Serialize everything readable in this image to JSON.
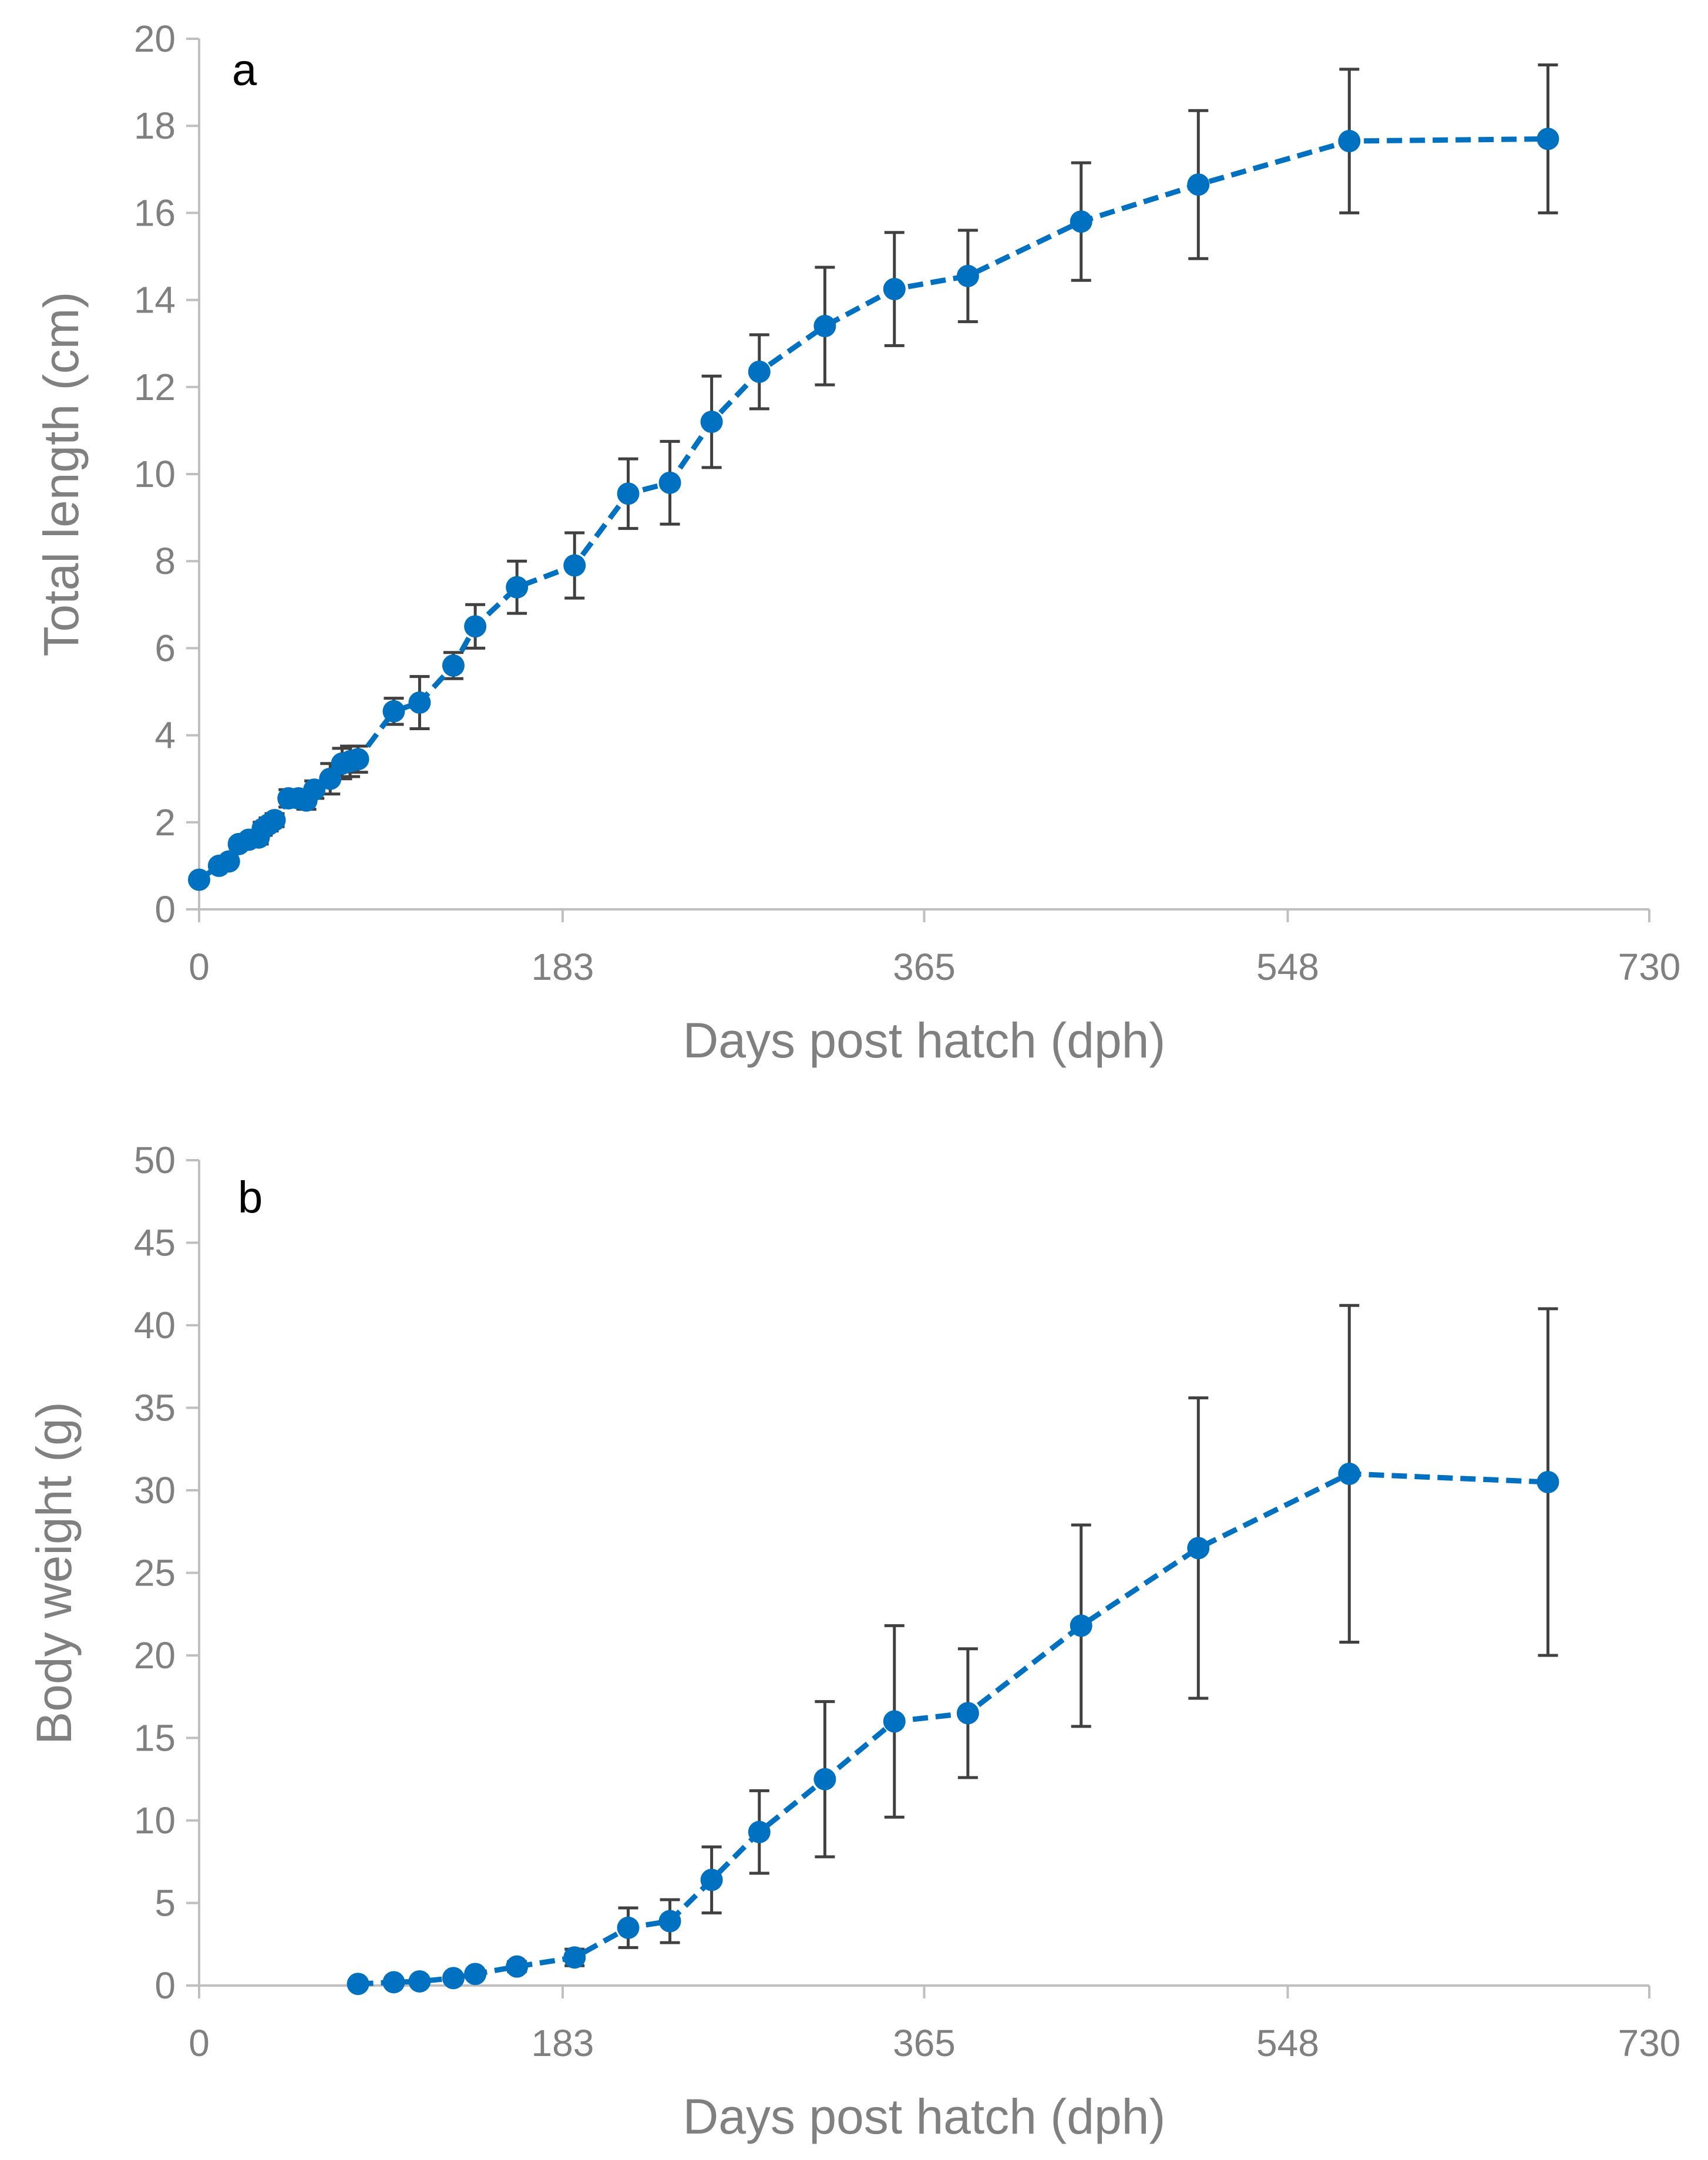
{
  "chart_data": [
    {
      "id": "a",
      "type": "line",
      "panel_label": "a",
      "xlabel": "Days post hatch (dph)",
      "ylabel": "Total length (cm)",
      "xlim": [
        0,
        730
      ],
      "ylim": [
        0,
        20
      ],
      "xticks": [
        0,
        183,
        365,
        548,
        730
      ],
      "yticks": [
        0,
        2,
        4,
        6,
        8,
        10,
        12,
        14,
        16,
        18,
        20
      ],
      "color": "#0070c0",
      "points": [
        {
          "x": 0,
          "y": 0.68,
          "err": 0
        },
        {
          "x": 10,
          "y": 1.0,
          "err": 0.05
        },
        {
          "x": 15,
          "y": 1.1,
          "err": 0.05
        },
        {
          "x": 20,
          "y": 1.5,
          "err": 0.1
        },
        {
          "x": 25,
          "y": 1.6,
          "err": 0.1
        },
        {
          "x": 30,
          "y": 1.65,
          "err": 0.15
        },
        {
          "x": 32,
          "y": 1.85,
          "err": 0.15
        },
        {
          "x": 35,
          "y": 1.95,
          "err": 0.15
        },
        {
          "x": 38,
          "y": 2.05,
          "err": 0.15
        },
        {
          "x": 45,
          "y": 2.55,
          "err": 0.2
        },
        {
          "x": 50,
          "y": 2.55,
          "err": 0.2
        },
        {
          "x": 54,
          "y": 2.5,
          "err": 0.2
        },
        {
          "x": 58,
          "y": 2.75,
          "err": 0.2
        },
        {
          "x": 66,
          "y": 3.0,
          "err": 0.35
        },
        {
          "x": 72,
          "y": 3.35,
          "err": 0.35
        },
        {
          "x": 76,
          "y": 3.4,
          "err": 0.35
        },
        {
          "x": 80,
          "y": 3.45,
          "err": 0.3
        },
        {
          "x": 98,
          "y": 4.55,
          "err": 0.3
        },
        {
          "x": 111,
          "y": 4.75,
          "err": 0.6
        },
        {
          "x": 128,
          "y": 5.6,
          "err": 0.3
        },
        {
          "x": 139,
          "y": 6.5,
          "err": 0.5
        },
        {
          "x": 160,
          "y": 7.4,
          "err": 0.6
        },
        {
          "x": 189,
          "y": 7.9,
          "err": 0.75
        },
        {
          "x": 216,
          "y": 9.55,
          "err": 0.8
        },
        {
          "x": 237,
          "y": 9.8,
          "err": 0.95
        },
        {
          "x": 258,
          "y": 11.2,
          "err": 1.05
        },
        {
          "x": 282,
          "y": 12.35,
          "err": 0.85
        },
        {
          "x": 315,
          "y": 13.4,
          "err": 1.35
        },
        {
          "x": 350,
          "y": 14.25,
          "err": 1.3
        },
        {
          "x": 387,
          "y": 14.55,
          "err": 1.05
        },
        {
          "x": 444,
          "y": 15.8,
          "err": 1.35
        },
        {
          "x": 503,
          "y": 16.65,
          "err": 1.7
        },
        {
          "x": 579,
          "y": 17.65,
          "err": 1.65
        },
        {
          "x": 679,
          "y": 17.7,
          "err": 1.7
        }
      ]
    },
    {
      "id": "b",
      "type": "line",
      "panel_label": "b",
      "xlabel": "Days post hatch (dph)",
      "ylabel": "Body weight (g)",
      "xlim": [
        0,
        730
      ],
      "ylim": [
        0,
        50
      ],
      "xticks": [
        0,
        183,
        365,
        548,
        730
      ],
      "yticks": [
        0,
        5,
        10,
        15,
        20,
        25,
        30,
        35,
        40,
        45,
        50
      ],
      "color": "#0070c0",
      "points": [
        {
          "x": 80,
          "y": 0.1,
          "err": 0
        },
        {
          "x": 98,
          "y": 0.2,
          "err": 0
        },
        {
          "x": 111,
          "y": 0.25,
          "err": 0
        },
        {
          "x": 128,
          "y": 0.45,
          "err": 0.1
        },
        {
          "x": 139,
          "y": 0.7,
          "err": 0.2
        },
        {
          "x": 160,
          "y": 1.15,
          "err": 0.3
        },
        {
          "x": 189,
          "y": 1.7,
          "err": 0.5
        },
        {
          "x": 216,
          "y": 3.5,
          "err": 1.2
        },
        {
          "x": 237,
          "y": 3.9,
          "err": 1.3
        },
        {
          "x": 258,
          "y": 6.4,
          "err": 2.0
        },
        {
          "x": 282,
          "y": 9.3,
          "err": 2.5
        },
        {
          "x": 315,
          "y": 12.5,
          "err": 4.7
        },
        {
          "x": 350,
          "y": 16.0,
          "err": 5.8
        },
        {
          "x": 387,
          "y": 16.5,
          "err": 3.9
        },
        {
          "x": 444,
          "y": 21.8,
          "err": 6.1
        },
        {
          "x": 503,
          "y": 26.5,
          "err": 9.1
        },
        {
          "x": 579,
          "y": 31.0,
          "err": 10.2
        },
        {
          "x": 679,
          "y": 30.5,
          "err": 10.5
        }
      ]
    }
  ]
}
